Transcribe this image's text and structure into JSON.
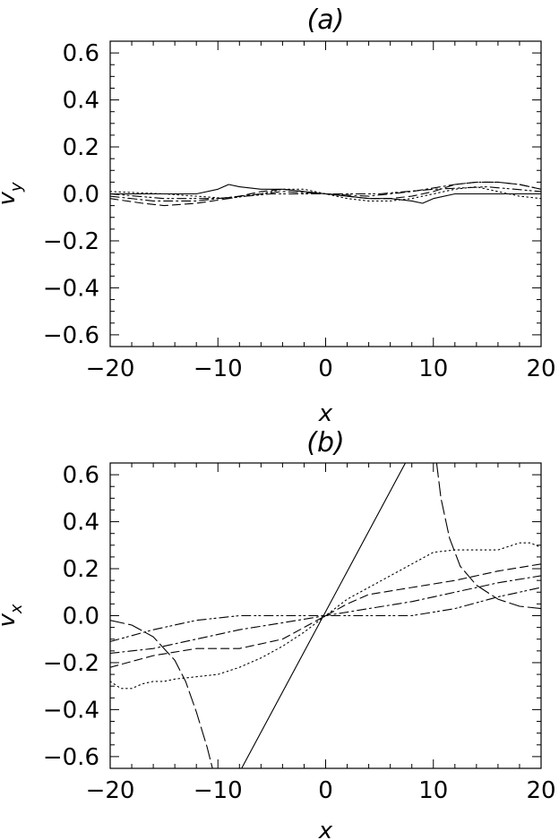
{
  "chart_data": [
    {
      "type": "line",
      "title": "(a)",
      "xlabel": "x",
      "ylabel": "v_y",
      "xlim": [
        -20,
        20
      ],
      "ylim": [
        -0.65,
        0.65
      ],
      "xticks": [
        "−20",
        "−10",
        "0",
        "10",
        "20"
      ],
      "xtick_values": [
        -20,
        -10,
        0,
        10,
        20
      ],
      "yticks": [
        "−0.6",
        "−0.4",
        "−0.2",
        "0.0",
        "0.2",
        "0.4",
        "0.6"
      ],
      "ytick_values": [
        -0.6,
        -0.4,
        -0.2,
        0.0,
        0.2,
        0.4,
        0.6
      ],
      "grid": false,
      "series": [
        {
          "style": "solid",
          "x": [
            -20,
            -15,
            -12,
            -10,
            -9,
            -8,
            -6,
            -4,
            -2,
            0,
            2,
            4,
            6,
            8,
            9,
            10,
            12,
            15,
            20
          ],
          "y": [
            0,
            0,
            0,
            0.02,
            0.04,
            0.03,
            0.02,
            0.02,
            0.01,
            0,
            -0.01,
            -0.02,
            -0.02,
            -0.03,
            -0.04,
            -0.02,
            0,
            0,
            0
          ]
        },
        {
          "style": "dashed",
          "x": [
            -20,
            -17,
            -15,
            -12,
            -9,
            -6,
            -4,
            -2,
            0,
            2,
            4,
            6,
            8,
            10,
            12,
            14,
            16,
            18,
            20
          ],
          "y": [
            -0.02,
            -0.04,
            -0.05,
            -0.04,
            -0.02,
            0.01,
            0.02,
            0.01,
            0,
            -0.01,
            -0.02,
            -0.02,
            -0.01,
            0.01,
            0.04,
            0.05,
            0.05,
            0.04,
            0.02
          ]
        },
        {
          "style": "dotted",
          "x": [
            -20,
            -15,
            -12,
            -9,
            -6,
            -4,
            -2,
            0,
            2,
            4,
            6,
            8,
            10,
            12,
            14,
            16,
            18,
            20
          ],
          "y": [
            0.01,
            0.0,
            -0.01,
            -0.02,
            0.0,
            0.02,
            0.02,
            0,
            -0.02,
            -0.03,
            -0.03,
            -0.02,
            0.0,
            0.02,
            0.03,
            0.01,
            -0.01,
            -0.02
          ]
        },
        {
          "style": "dashdot",
          "x": [
            -20,
            -16,
            -12,
            -8,
            -4,
            0,
            4,
            8,
            12,
            14,
            16,
            18,
            20
          ],
          "y": [
            -0.01,
            -0.03,
            -0.03,
            -0.01,
            0.01,
            0,
            -0.01,
            0.01,
            0.04,
            0.05,
            0.05,
            0.04,
            0.02
          ]
        },
        {
          "style": "dashdotdot",
          "x": [
            -20,
            -15,
            -10,
            -5,
            0,
            5,
            10,
            15,
            20
          ],
          "y": [
            0.0,
            -0.02,
            -0.02,
            0.0,
            0,
            0.0,
            0.02,
            0.03,
            0.01
          ]
        }
      ]
    },
    {
      "type": "line",
      "title": "(b)",
      "xlabel": "x",
      "ylabel": "v_x",
      "xlim": [
        -20,
        20
      ],
      "ylim": [
        -0.65,
        0.65
      ],
      "xticks": [
        "−20",
        "−10",
        "0",
        "10",
        "20"
      ],
      "xtick_values": [
        -20,
        -10,
        0,
        10,
        20
      ],
      "yticks": [
        "−0.6",
        "−0.4",
        "−0.2",
        "0.0",
        "0.2",
        "0.4",
        "0.6"
      ],
      "ytick_values": [
        -0.6,
        -0.4,
        -0.2,
        0.0,
        0.2,
        0.4,
        0.6
      ],
      "grid": false,
      "series": [
        {
          "style": "solid",
          "x": [
            -7.8,
            7.4
          ],
          "y": [
            -0.65,
            0.65
          ]
        },
        {
          "style": "longdash",
          "x": [
            -20,
            -18,
            -16,
            -14,
            -13,
            -12,
            -11,
            -10.5
          ],
          "y": [
            -0.02,
            -0.04,
            -0.09,
            -0.19,
            -0.28,
            -0.41,
            -0.56,
            -0.65
          ]
        },
        {
          "style": "longdash",
          "x": [
            10.3,
            10.7,
            11.5,
            12.5,
            14,
            16,
            18,
            20
          ],
          "y": [
            0.65,
            0.5,
            0.33,
            0.21,
            0.13,
            0.07,
            0.04,
            0.03
          ]
        },
        {
          "style": "dotted",
          "x": [
            -20,
            -19,
            -18,
            -17,
            -16,
            -15,
            -14,
            -12,
            -10,
            -8,
            -6,
            -4,
            -2,
            0,
            2,
            4,
            6,
            8,
            10,
            12,
            14,
            16,
            18,
            19,
            20
          ],
          "y": [
            -0.28,
            -0.31,
            -0.31,
            -0.29,
            -0.28,
            -0.28,
            -0.27,
            -0.26,
            -0.25,
            -0.22,
            -0.18,
            -0.13,
            -0.07,
            0,
            0.07,
            0.12,
            0.17,
            0.22,
            0.27,
            0.28,
            0.28,
            0.28,
            0.31,
            0.31,
            0.29
          ]
        },
        {
          "style": "dashed",
          "x": [
            -20,
            -16,
            -12,
            -8,
            -4,
            -2,
            0,
            2,
            4,
            8,
            12,
            16,
            20
          ],
          "y": [
            -0.22,
            -0.17,
            -0.14,
            -0.14,
            -0.1,
            -0.05,
            0,
            0.05,
            0.09,
            0.12,
            0.15,
            0.19,
            0.22
          ]
        },
        {
          "style": "dashdot",
          "x": [
            -20,
            -16,
            -12,
            -8,
            -4,
            0,
            4,
            8,
            12,
            16,
            20
          ],
          "y": [
            -0.16,
            -0.14,
            -0.1,
            -0.06,
            -0.03,
            0,
            0.03,
            0.06,
            0.1,
            0.14,
            0.17
          ]
        },
        {
          "style": "dashdotdot",
          "x": [
            -20,
            -16,
            -12,
            -8,
            -4,
            0,
            4,
            8,
            12,
            16,
            20
          ],
          "y": [
            -0.11,
            -0.06,
            -0.02,
            0.0,
            0.0,
            0,
            0.0,
            0.0,
            0.03,
            0.08,
            0.12
          ]
        }
      ]
    }
  ]
}
